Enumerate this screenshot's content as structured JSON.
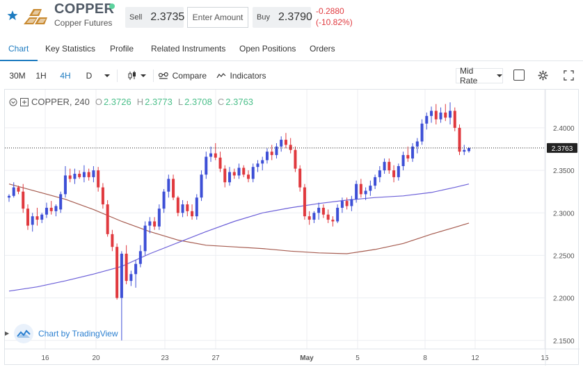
{
  "header": {
    "title": "COPPER",
    "subtitle": "Copper Futures",
    "sell_label": "Sell",
    "sell_price": "2.3735",
    "amount_placeholder": "Enter Amount",
    "buy_label": "Buy",
    "buy_price": "2.3790",
    "change": "-0.2880",
    "change_pct": "(-10.82%)",
    "icons": {
      "favorite": "star-icon",
      "logo": "gold-bars-icon",
      "status": "online-dot"
    }
  },
  "tabs": [
    {
      "label": "Chart",
      "active": true
    },
    {
      "label": "Key Statistics",
      "active": false
    },
    {
      "label": "Profile",
      "active": false
    },
    {
      "label": "Related Instruments",
      "active": false
    },
    {
      "label": "Open Positions",
      "active": false
    },
    {
      "label": "Orders",
      "active": false
    }
  ],
  "toolbar": {
    "intervals": [
      "30M",
      "1H",
      "4H",
      "D"
    ],
    "active_interval": "4H",
    "compare_label": "Compare",
    "indicators_label": "Indicators",
    "price_type": "Mid Rate",
    "icons": [
      "candles-icon",
      "compare-icon",
      "indicators-icon",
      "gear-icon",
      "fullscreen-icon"
    ]
  },
  "legend": {
    "symbol": "COPPER, 240",
    "o_label": "O",
    "o_value": "2.3726",
    "h_label": "H",
    "h_value": "2.3773",
    "l_label": "L",
    "l_value": "2.3708",
    "c_label": "C",
    "c_value": "2.3763"
  },
  "watermark": "Chart by TradingView",
  "colors": {
    "up": "#3d4fd6",
    "down": "#e0393e",
    "ma_fast": "#6b5fd8",
    "ma_slow": "#a55a4e",
    "accent": "#1d7bc0"
  },
  "chart_data": {
    "type": "candlestick",
    "x_ticks": [
      "16",
      "20",
      "23",
      "27",
      "May",
      "5",
      "8",
      "12",
      "15"
    ],
    "y_ticks": [
      2.15,
      2.2,
      2.25,
      2.3,
      2.35,
      2.4
    ],
    "ylim": [
      2.14,
      2.44
    ],
    "last_price_label": "2.3763",
    "last_price": 2.3763,
    "grid": true,
    "candles": [
      [
        2.318,
        2.322,
        2.313,
        2.32
      ],
      [
        2.32,
        2.336,
        2.318,
        2.33
      ],
      [
        2.33,
        2.332,
        2.322,
        2.325
      ],
      [
        2.325,
        2.334,
        2.3,
        2.305
      ],
      [
        2.305,
        2.31,
        2.28,
        2.285
      ],
      [
        2.286,
        2.3,
        2.278,
        2.296
      ],
      [
        2.296,
        2.306,
        2.285,
        2.292
      ],
      [
        2.292,
        2.3,
        2.288,
        2.298
      ],
      [
        2.298,
        2.312,
        2.294,
        2.306
      ],
      [
        2.306,
        2.314,
        2.298,
        2.302
      ],
      [
        2.302,
        2.31,
        2.296,
        2.308
      ],
      [
        2.304,
        2.325,
        2.3,
        2.322
      ],
      [
        2.322,
        2.355,
        2.318,
        2.344
      ],
      [
        2.344,
        2.352,
        2.336,
        2.34
      ],
      [
        2.34,
        2.352,
        2.334,
        2.346
      ],
      [
        2.346,
        2.35,
        2.34,
        2.342
      ],
      [
        2.342,
        2.356,
        2.336,
        2.348
      ],
      [
        2.348,
        2.352,
        2.338,
        2.342
      ],
      [
        2.342,
        2.355,
        2.336,
        2.35
      ],
      [
        2.35,
        2.354,
        2.325,
        2.33
      ],
      [
        2.33,
        2.335,
        2.305,
        2.31
      ],
      [
        2.31,
        2.315,
        2.272,
        2.275
      ],
      [
        2.275,
        2.28,
        2.255,
        2.26
      ],
      [
        2.26,
        2.264,
        2.198,
        2.2
      ],
      [
        2.2,
        2.255,
        2.15,
        2.252
      ],
      [
        2.252,
        2.262,
        2.216,
        2.22
      ],
      [
        2.22,
        2.232,
        2.214,
        2.228
      ],
      [
        2.228,
        2.245,
        2.212,
        2.24
      ],
      [
        2.24,
        2.262,
        2.236,
        2.255
      ],
      [
        2.255,
        2.29,
        2.25,
        2.285
      ],
      [
        2.285,
        2.295,
        2.276,
        2.29
      ],
      [
        2.29,
        2.295,
        2.28,
        2.284
      ],
      [
        2.284,
        2.31,
        2.28,
        2.305
      ],
      [
        2.305,
        2.328,
        2.3,
        2.325
      ],
      [
        2.325,
        2.345,
        2.318,
        2.34
      ],
      [
        2.34,
        2.345,
        2.315,
        2.318
      ],
      [
        2.318,
        2.32,
        2.296,
        2.3
      ],
      [
        2.3,
        2.315,
        2.295,
        2.31
      ],
      [
        2.31,
        2.314,
        2.296,
        2.302
      ],
      [
        2.302,
        2.31,
        2.292,
        2.296
      ],
      [
        2.296,
        2.322,
        2.292,
        2.318
      ],
      [
        2.318,
        2.35,
        2.314,
        2.345
      ],
      [
        2.345,
        2.372,
        2.34,
        2.366
      ],
      [
        2.366,
        2.378,
        2.36,
        2.37
      ],
      [
        2.37,
        2.382,
        2.362,
        2.365
      ],
      [
        2.365,
        2.372,
        2.348,
        2.352
      ],
      [
        2.352,
        2.356,
        2.33,
        2.336
      ],
      [
        2.336,
        2.354,
        2.332,
        2.348
      ],
      [
        2.348,
        2.352,
        2.34,
        2.344
      ],
      [
        2.344,
        2.358,
        2.34,
        2.353
      ],
      [
        2.353,
        2.356,
        2.342,
        2.345
      ],
      [
        2.345,
        2.35,
        2.336,
        2.34
      ],
      [
        2.34,
        2.358,
        2.336,
        2.354
      ],
      [
        2.354,
        2.362,
        2.348,
        2.358
      ],
      [
        2.358,
        2.366,
        2.35,
        2.362
      ],
      [
        2.362,
        2.376,
        2.358,
        2.372
      ],
      [
        2.372,
        2.38,
        2.362,
        2.368
      ],
      [
        2.368,
        2.382,
        2.364,
        2.378
      ],
      [
        2.378,
        2.39,
        2.372,
        2.386
      ],
      [
        2.386,
        2.394,
        2.376,
        2.38
      ],
      [
        2.38,
        2.388,
        2.37,
        2.374
      ],
      [
        2.374,
        2.378,
        2.348,
        2.352
      ],
      [
        2.352,
        2.356,
        2.325,
        2.33
      ],
      [
        2.33,
        2.334,
        2.292,
        2.296
      ],
      [
        2.296,
        2.302,
        2.286,
        2.292
      ],
      [
        2.292,
        2.302,
        2.288,
        2.3
      ],
      [
        2.3,
        2.312,
        2.292,
        2.306
      ],
      [
        2.306,
        2.31,
        2.294,
        2.298
      ],
      [
        2.298,
        2.304,
        2.288,
        2.292
      ],
      [
        2.292,
        2.296,
        2.284,
        2.29
      ],
      [
        2.29,
        2.31,
        2.288,
        2.306
      ],
      [
        2.306,
        2.318,
        2.3,
        2.314
      ],
      [
        2.314,
        2.318,
        2.304,
        2.308
      ],
      [
        2.308,
        2.32,
        2.302,
        2.316
      ],
      [
        2.316,
        2.338,
        2.312,
        2.334
      ],
      [
        2.334,
        2.34,
        2.318,
        2.322
      ],
      [
        2.322,
        2.33,
        2.315,
        2.326
      ],
      [
        2.326,
        2.338,
        2.32,
        2.332
      ],
      [
        2.332,
        2.345,
        2.328,
        2.342
      ],
      [
        2.342,
        2.355,
        2.336,
        2.35
      ],
      [
        2.35,
        2.364,
        2.346,
        2.36
      ],
      [
        2.36,
        2.364,
        2.346,
        2.35
      ],
      [
        2.35,
        2.356,
        2.336,
        2.342
      ],
      [
        2.342,
        2.358,
        2.338,
        2.355
      ],
      [
        2.355,
        2.372,
        2.35,
        2.368
      ],
      [
        2.368,
        2.378,
        2.36,
        2.364
      ],
      [
        2.364,
        2.382,
        2.36,
        2.378
      ],
      [
        2.378,
        2.388,
        2.37,
        2.384
      ],
      [
        2.384,
        2.41,
        2.38,
        2.405
      ],
      [
        2.405,
        2.418,
        2.398,
        2.414
      ],
      [
        2.414,
        2.425,
        2.406,
        2.42
      ],
      [
        2.42,
        2.428,
        2.404,
        2.41
      ],
      [
        2.41,
        2.424,
        2.406,
        2.418
      ],
      [
        2.418,
        2.428,
        2.408,
        2.412
      ],
      [
        2.412,
        2.43,
        2.404,
        2.42
      ],
      [
        2.42,
        2.424,
        2.396,
        2.4
      ],
      [
        2.4,
        2.404,
        2.368,
        2.372
      ],
      [
        2.372,
        2.38,
        2.368,
        2.374
      ],
      [
        2.3726,
        2.3773,
        2.3708,
        2.3763
      ]
    ],
    "ma_fast": [
      [
        0,
        2.208
      ],
      [
        6,
        2.213
      ],
      [
        12,
        2.22
      ],
      [
        18,
        2.228
      ],
      [
        24,
        2.237
      ],
      [
        30,
        2.252
      ],
      [
        36,
        2.265
      ],
      [
        42,
        2.278
      ],
      [
        48,
        2.29
      ],
      [
        54,
        2.3
      ],
      [
        60,
        2.306
      ],
      [
        66,
        2.311
      ],
      [
        72,
        2.315
      ],
      [
        78,
        2.318
      ],
      [
        84,
        2.32
      ],
      [
        90,
        2.324
      ],
      [
        95,
        2.33
      ],
      [
        98,
        2.334
      ]
    ],
    "ma_slow": [
      [
        0,
        2.334
      ],
      [
        6,
        2.325
      ],
      [
        12,
        2.316
      ],
      [
        18,
        2.304
      ],
      [
        24,
        2.29
      ],
      [
        30,
        2.278
      ],
      [
        36,
        2.268
      ],
      [
        42,
        2.262
      ],
      [
        48,
        2.26
      ],
      [
        54,
        2.258
      ],
      [
        60,
        2.255
      ],
      [
        66,
        2.253
      ],
      [
        72,
        2.252
      ],
      [
        78,
        2.257
      ],
      [
        84,
        2.264
      ],
      [
        90,
        2.275
      ],
      [
        95,
        2.283
      ],
      [
        98,
        2.288
      ]
    ]
  }
}
